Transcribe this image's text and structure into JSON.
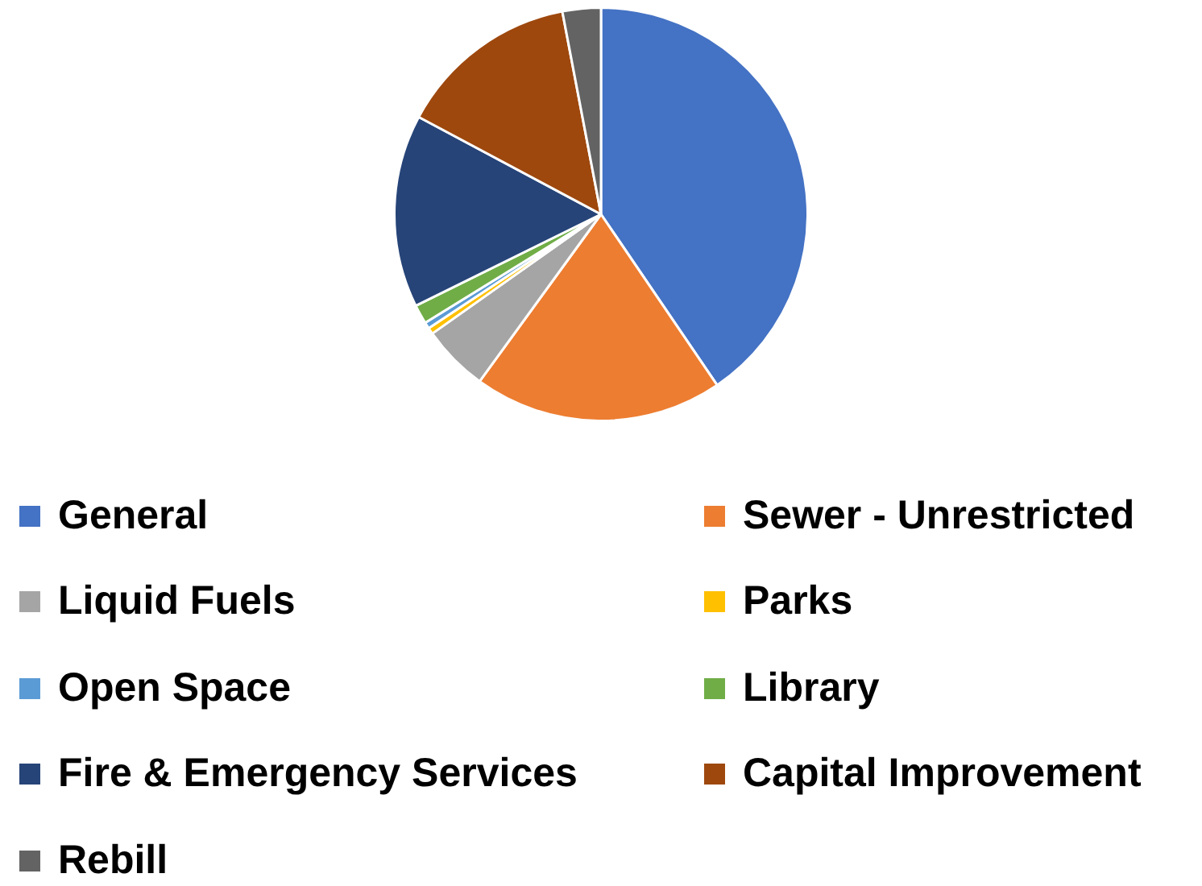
{
  "chart_data": {
    "type": "pie",
    "categories": [
      "General",
      "Sewer - Unrestricted",
      "Liquid Fuels",
      "Parks",
      "Open Space",
      "Library",
      "Fire & Emergency Services",
      "Capital Improvement",
      "Rebill"
    ],
    "values": [
      40.5,
      19.5,
      5.2,
      0.5,
      0.5,
      1.5,
      15.1,
      14.2,
      3.0
    ],
    "colors": [
      "#4472c4",
      "#ed7d31",
      "#a5a5a5",
      "#ffc000",
      "#5b9bd5",
      "#70ad47",
      "#264478",
      "#9e480e",
      "#636363"
    ],
    "legend": "bottom"
  }
}
